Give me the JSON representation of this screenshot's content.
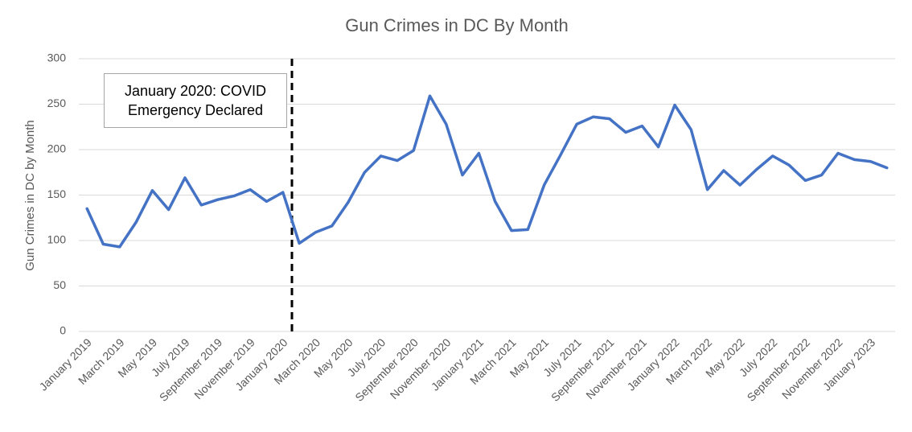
{
  "chart_data": {
    "type": "line",
    "title": "Gun Crimes in DC By Month",
    "y_label": "Gun Crimes in DC by Month",
    "annotation": "January 2020: COVID Emergency Declared",
    "categories": [
      "January 2019",
      null,
      "March 2019",
      null,
      "May 2019",
      null,
      "July 2019",
      null,
      "September 2019",
      null,
      "November 2019",
      null,
      "January 2020",
      null,
      "March 2020",
      null,
      "May 2020",
      null,
      "July 2020",
      null,
      "September 2020",
      null,
      "November 2020",
      null,
      "January 2021",
      null,
      "March 2021",
      null,
      "May 2021",
      null,
      "July 2021",
      null,
      "September 2021",
      null,
      "November 2021",
      null,
      "January 2022",
      null,
      "March 2022",
      null,
      "May 2022",
      null,
      "July 2022",
      null,
      "September 2022",
      null,
      "November 2022",
      null,
      "January 2023",
      null
    ],
    "series": [
      {
        "name": "Gun Crimes in DC by Month",
        "color": "#4472c4",
        "values": [
          135,
          96,
          93,
          120,
          155,
          134,
          169,
          139,
          145,
          149,
          156,
          143,
          153,
          97,
          109,
          116,
          142,
          175,
          193,
          188,
          199,
          259,
          228,
          172,
          196,
          143,
          111,
          112,
          161,
          194,
          228,
          236,
          234,
          219,
          226,
          203,
          249,
          222,
          156,
          177,
          161,
          178,
          193,
          183,
          166,
          172,
          196,
          189,
          187,
          180
        ]
      }
    ],
    "ylim": [
      0,
      300
    ],
    "yticks": [
      0,
      50,
      100,
      150,
      200,
      250,
      300
    ],
    "grid": true
  }
}
